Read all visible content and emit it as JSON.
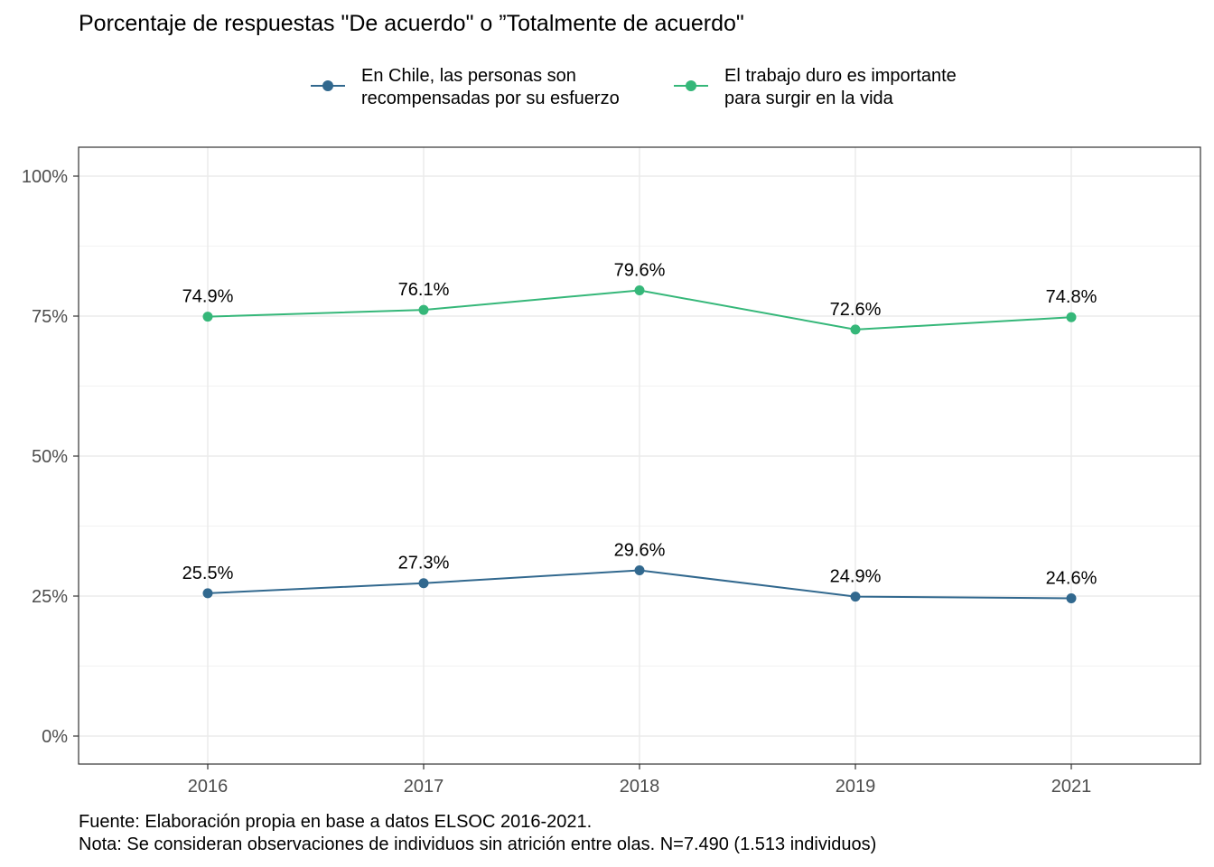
{
  "chart_data": {
    "type": "line",
    "title": "Porcentaje de respuestas \"De acuerdo\" o ”Totalmente de acuerdo\"",
    "categories": [
      "2016",
      "2017",
      "2018",
      "2019",
      "2021"
    ],
    "ylim": [
      0,
      100
    ],
    "y_ticks": [
      0,
      25,
      50,
      75,
      100
    ],
    "y_tick_labels": [
      "0%",
      "25%",
      "50%",
      "75%",
      "100%"
    ],
    "grid": true,
    "legend_position": "top",
    "series": [
      {
        "name": "En Chile, las personas son recompensadas por su esfuerzo",
        "name_lines": [
          "En Chile, las personas son",
          "recompensadas por su esfuerzo"
        ],
        "color": "#31688e",
        "values": [
          25.5,
          27.3,
          29.6,
          24.9,
          24.6
        ],
        "labels": [
          "25.5%",
          "27.3%",
          "29.6%",
          "24.9%",
          "24.6%"
        ]
      },
      {
        "name": "El trabajo duro es importante para surgir en la vida",
        "name_lines": [
          "El trabajo duro es importante",
          "para surgir en la vida"
        ],
        "color": "#35b779",
        "values": [
          74.9,
          76.1,
          79.6,
          72.6,
          74.8
        ],
        "labels": [
          "74.9%",
          "76.1%",
          "79.6%",
          "72.6%",
          "74.8%"
        ]
      }
    ],
    "caption": [
      "Fuente: Elaboración propia en base a datos ELSOC 2016-2021.",
      "Nota: Se consideran observaciones de individuos sin atrición entre olas. N=7.490 (1.513 individuos)"
    ]
  }
}
